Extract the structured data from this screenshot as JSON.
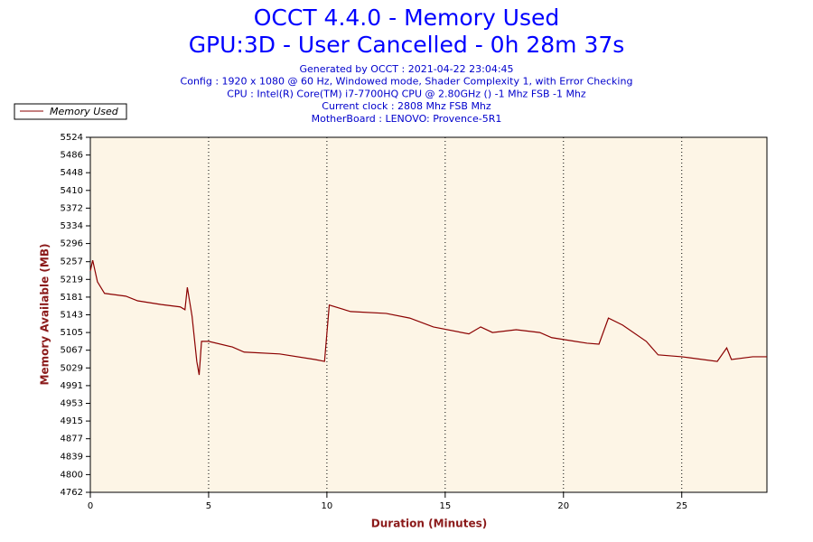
{
  "chart_data": {
    "type": "line",
    "title": "OCCT 4.4.0 - Memory Used",
    "subtitle": "GPU:3D - User Cancelled - 0h 28m 37s",
    "info_lines": [
      "Generated by OCCT : 2021-04-22 23:04:45",
      "Config : 1920 x 1080 @ 60 Hz, Windowed mode, Shader Complexity 1, with Error Checking",
      "CPU : Intel(R) Core(TM) i7-7700HQ CPU @ 2.80GHz () -1 Mhz FSB -1 Mhz",
      "Current clock : 2808 Mhz FSB  Mhz",
      "MotherBoard : LENOVO: Provence-5R1"
    ],
    "x_label": "Duration (Minutes)",
    "y_label": "Memory Available (MB)",
    "x": [
      0,
      0.1,
      0.3,
      0.6,
      1.5,
      2,
      3,
      3.8,
      4.0,
      4.1,
      4.3,
      4.5,
      4.6,
      4.7,
      5,
      6,
      6.5,
      8,
      9.5,
      9.9,
      10.1,
      11,
      12.5,
      13.5,
      14.5,
      16,
      16.5,
      17,
      18,
      19,
      19.5,
      21,
      21.5,
      21.9,
      22.5,
      23.5,
      24,
      25,
      26.5,
      26.9,
      27.1,
      28,
      28.6
    ],
    "series": [
      {
        "name": "Memory Used",
        "color": "#8b0000",
        "values": [
          5237,
          5260,
          5214,
          5189,
          5183,
          5173,
          5165,
          5160,
          5154,
          5202,
          5140,
          5043,
          5014,
          5086,
          5086,
          5074,
          5063,
          5059,
          5047,
          5043,
          5164,
          5150,
          5146,
          5136,
          5117,
          5102,
          5117,
          5105,
          5111,
          5105,
          5094,
          5082,
          5080,
          5136,
          5121,
          5086,
          5057,
          5053,
          5043,
          5072,
          5047,
          5053,
          5053
        ]
      }
    ],
    "xlim": [
      0,
      28.6
    ],
    "xticks": [
      0,
      5,
      10,
      15,
      20,
      25
    ],
    "ylim": [
      4762,
      5524
    ],
    "yticks": [
      4762,
      4800,
      4839,
      4877,
      4915,
      4953,
      4991,
      5029,
      5067,
      5105,
      5143,
      5181,
      5219,
      5257,
      5296,
      5334,
      5372,
      5410,
      5448,
      5486,
      5524
    ],
    "grid": "x",
    "legend": "upper left",
    "plot_background": "#fdf5e6"
  }
}
